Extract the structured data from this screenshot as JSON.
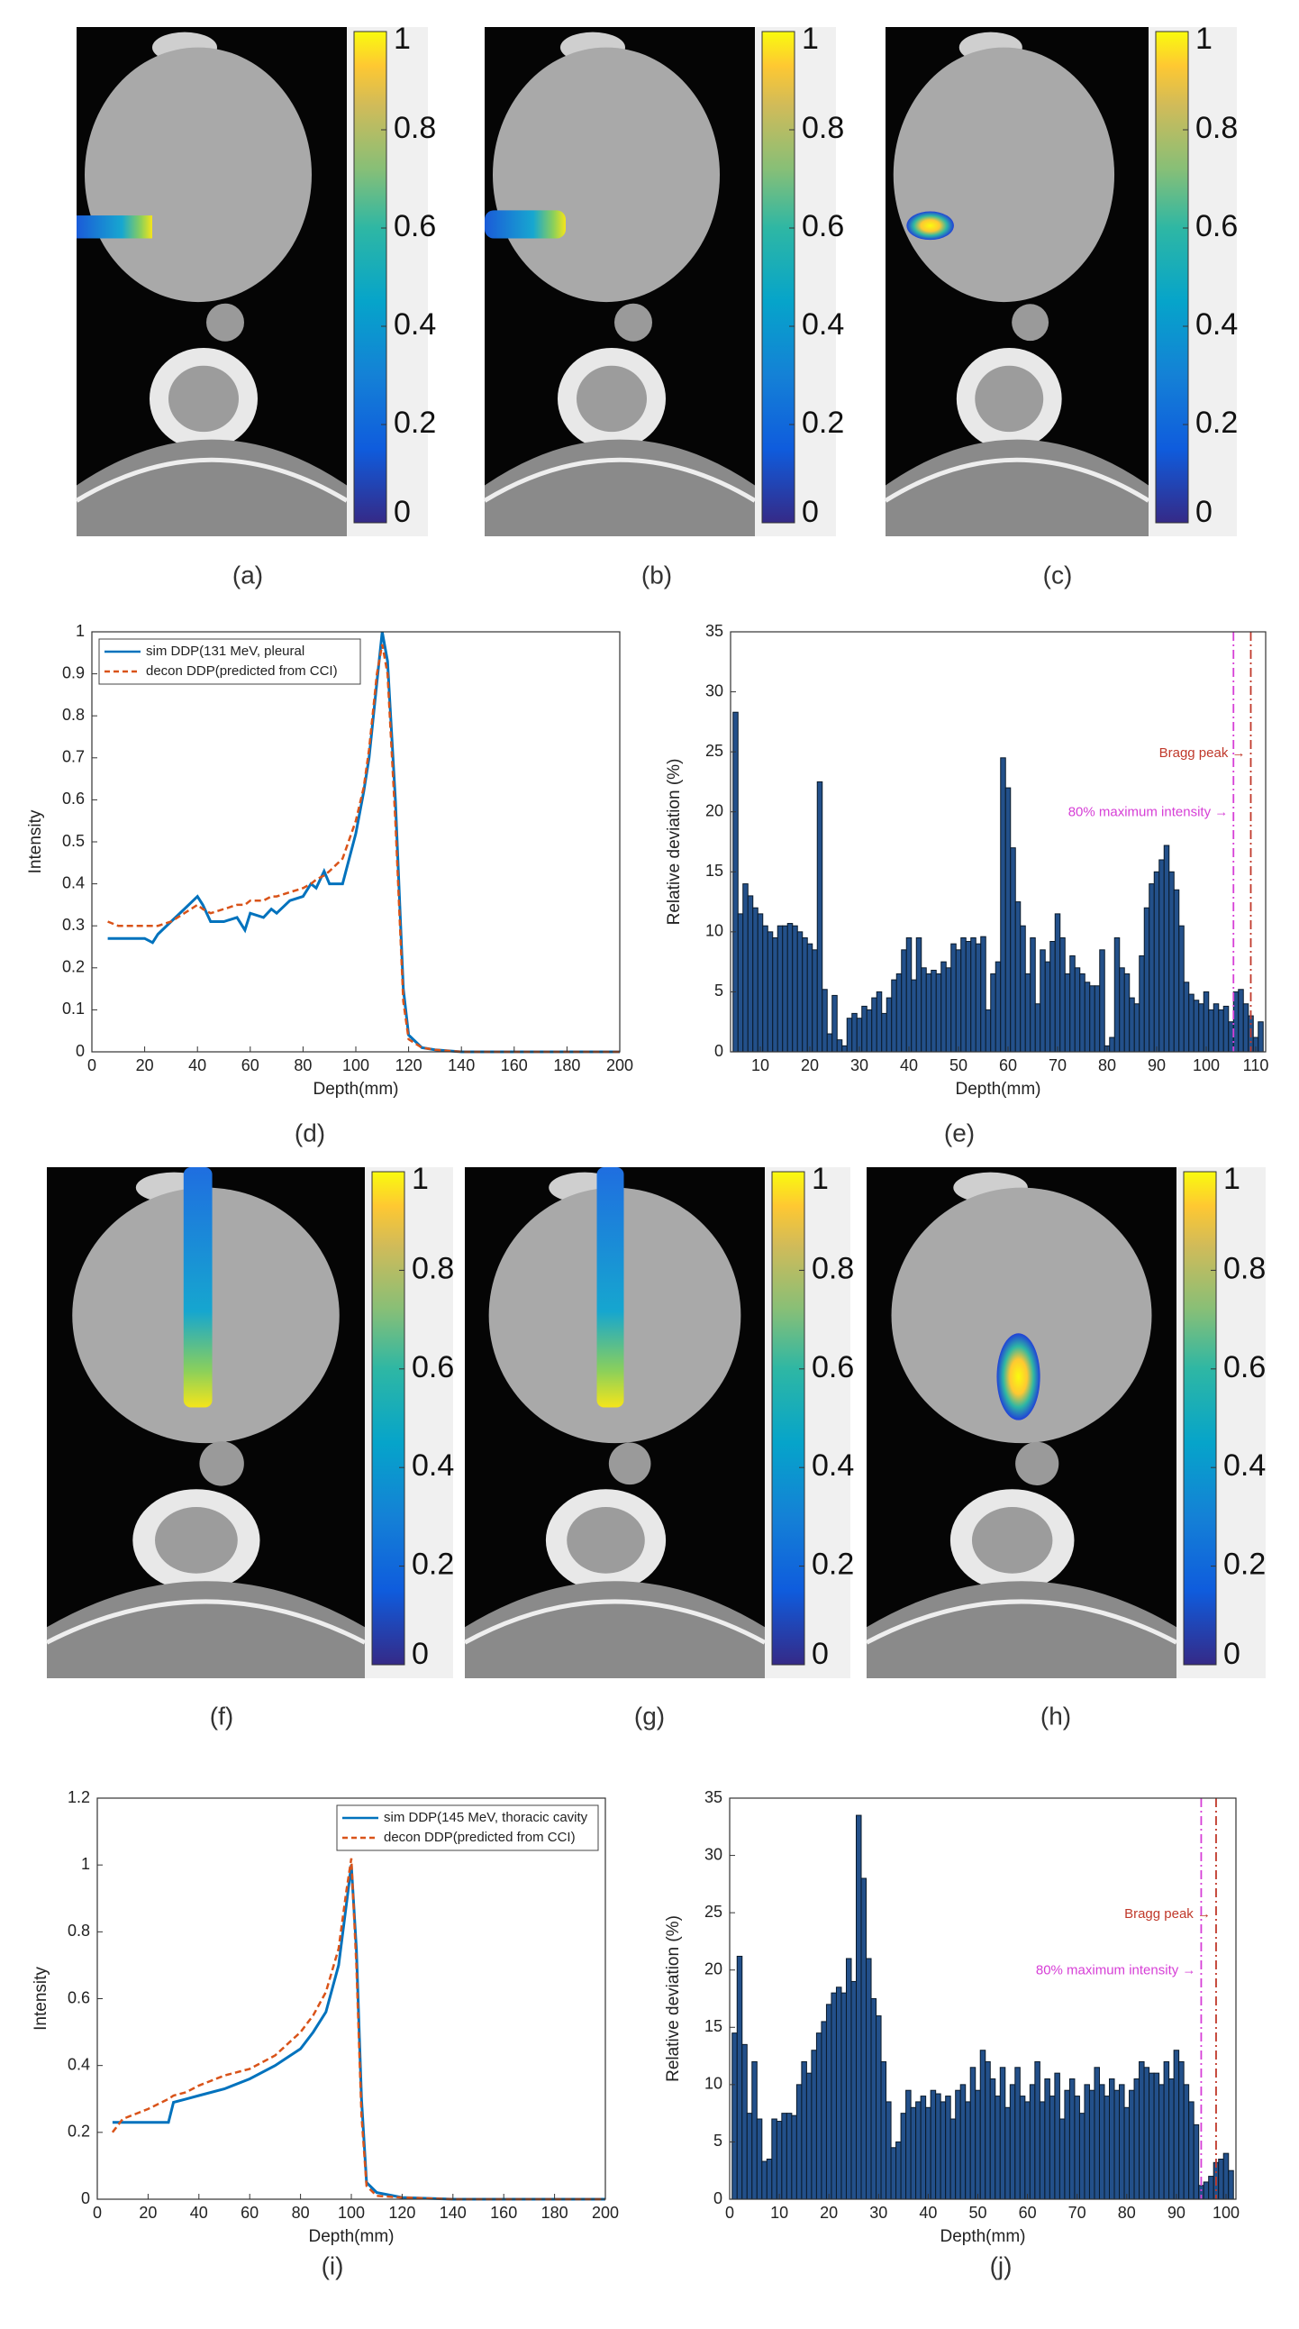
{
  "figure": {
    "image_panels": [
      {
        "label": "(a)"
      },
      {
        "label": "(b)"
      },
      {
        "label": "(c)"
      },
      {
        "label": "(f)"
      },
      {
        "label": "(g)"
      },
      {
        "label": "(h)"
      }
    ],
    "colorbar": {
      "ylim": [
        0,
        1
      ],
      "yticks": [
        0,
        0.2,
        0.4,
        0.6,
        0.8,
        1
      ]
    }
  },
  "chart_data": [
    {
      "type": "line",
      "label": "(d)",
      "xlabel": "Depth(mm)",
      "ylabel": "Intensity",
      "xlim": [
        0,
        200
      ],
      "ylim": [
        0,
        1
      ],
      "xticks": [
        0,
        20,
        40,
        60,
        80,
        100,
        120,
        140,
        160,
        180,
        200
      ],
      "yticks": [
        0,
        0.1,
        0.2,
        0.3,
        0.4,
        0.5,
        0.6,
        0.7,
        0.8,
        0.9,
        1
      ],
      "legend": "upper left",
      "series": [
        {
          "name": "sim DDP(131 MeV, pleural",
          "color": "#0072bd",
          "style": "solid",
          "x": [
            6,
            10,
            15,
            20,
            23,
            25,
            30,
            35,
            40,
            42,
            45,
            50,
            55,
            58,
            60,
            65,
            68,
            70,
            75,
            80,
            83,
            85,
            88,
            90,
            95,
            100,
            103,
            105,
            108,
            110,
            112,
            115,
            118,
            120,
            125,
            130,
            140,
            150,
            160,
            170,
            180,
            190,
            200
          ],
          "values": [
            0.27,
            0.27,
            0.27,
            0.27,
            0.26,
            0.28,
            0.31,
            0.34,
            0.37,
            0.35,
            0.31,
            0.31,
            0.32,
            0.29,
            0.33,
            0.32,
            0.34,
            0.33,
            0.36,
            0.37,
            0.4,
            0.39,
            0.43,
            0.4,
            0.4,
            0.52,
            0.62,
            0.7,
            0.88,
            1.0,
            0.93,
            0.6,
            0.15,
            0.04,
            0.01,
            0.005,
            0,
            0,
            0,
            0,
            0,
            0,
            0
          ]
        },
        {
          "name": "decon DDP(predicted from CCI)",
          "color": "#d95319",
          "style": "dashed",
          "x": [
            6,
            10,
            15,
            20,
            23,
            25,
            30,
            35,
            40,
            42,
            45,
            50,
            55,
            58,
            60,
            65,
            68,
            70,
            75,
            80,
            83,
            85,
            88,
            90,
            95,
            100,
            103,
            105,
            108,
            110,
            112,
            115,
            118,
            120,
            125,
            130,
            140,
            150,
            160,
            170,
            180,
            190,
            200
          ],
          "values": [
            0.31,
            0.3,
            0.3,
            0.3,
            0.3,
            0.3,
            0.31,
            0.33,
            0.35,
            0.34,
            0.33,
            0.34,
            0.35,
            0.35,
            0.36,
            0.36,
            0.37,
            0.37,
            0.38,
            0.39,
            0.4,
            0.41,
            0.42,
            0.43,
            0.46,
            0.55,
            0.63,
            0.72,
            0.9,
            0.97,
            0.9,
            0.55,
            0.12,
            0.03,
            0.01,
            0.005,
            0,
            0,
            0,
            0,
            0,
            0,
            0
          ]
        }
      ]
    },
    {
      "type": "bar",
      "label": "(e)",
      "xlabel": "Depth(mm)",
      "ylabel": "Relative deviation (%)",
      "xlim": [
        4,
        112
      ],
      "ylim": [
        0,
        35
      ],
      "xticks": [
        10,
        20,
        30,
        40,
        50,
        60,
        70,
        80,
        90,
        100,
        110
      ],
      "yticks": [
        0,
        5,
        10,
        15,
        20,
        25,
        30,
        35
      ],
      "color": "#23508a",
      "x": [
        5,
        6,
        7,
        8,
        9,
        10,
        11,
        12,
        13,
        14,
        15,
        16,
        17,
        18,
        19,
        20,
        21,
        22,
        23,
        24,
        25,
        26,
        27,
        28,
        29,
        30,
        31,
        32,
        33,
        34,
        35,
        36,
        37,
        38,
        39,
        40,
        41,
        42,
        43,
        44,
        45,
        46,
        47,
        48,
        49,
        50,
        51,
        52,
        53,
        54,
        55,
        56,
        57,
        58,
        59,
        60,
        61,
        62,
        63,
        64,
        65,
        66,
        67,
        68,
        69,
        70,
        71,
        72,
        73,
        74,
        75,
        76,
        77,
        78,
        79,
        80,
        81,
        82,
        83,
        84,
        85,
        86,
        87,
        88,
        89,
        90,
        91,
        92,
        93,
        94,
        95,
        96,
        97,
        98,
        99,
        100,
        101,
        102,
        103,
        104,
        105,
        106,
        107,
        108,
        109,
        110,
        111
      ],
      "values": [
        28.3,
        11.5,
        14,
        13,
        12,
        11.5,
        10.5,
        10,
        9.5,
        10.5,
        10.5,
        10.7,
        10.5,
        10,
        9.5,
        9,
        8.5,
        22.5,
        5.2,
        1.5,
        4.7,
        1,
        0.5,
        2.8,
        3.2,
        2.8,
        3.8,
        3.5,
        4.5,
        5,
        3.2,
        4.5,
        6,
        6.5,
        8.5,
        9.5,
        6,
        9.5,
        7,
        6.5,
        6.8,
        6.5,
        7.5,
        7,
        9,
        8.5,
        9.5,
        9.2,
        9.5,
        9,
        9.6,
        3.5,
        6.5,
        7.5,
        24.5,
        22,
        17,
        12.5,
        10.5,
        6.5,
        9.5,
        4,
        8.5,
        7.5,
        9.2,
        11.5,
        9.5,
        6.5,
        8,
        7,
        6.5,
        5.8,
        5.5,
        5.5,
        8.5,
        0.5,
        1.2,
        9.5,
        7,
        6.5,
        4.5,
        4,
        8,
        12,
        14,
        15,
        16,
        17.2,
        15,
        13.5,
        10.5,
        5.8,
        4.8,
        4.3,
        4,
        5,
        3.5,
        4,
        3.5,
        3.8,
        2.5,
        5,
        5.2,
        4,
        3,
        1.2,
        2.5
      ],
      "vlines": [
        {
          "x": 105.5,
          "label": "80% maximum intensity →",
          "color": "#d63fd6"
        },
        {
          "x": 109,
          "label": "Bragg peak →",
          "color": "#c0392b"
        }
      ]
    },
    {
      "type": "line",
      "label": "(i)",
      "xlabel": "Depth(mm)",
      "ylabel": "Intensity",
      "xlim": [
        0,
        200
      ],
      "ylim": [
        0,
        1.2
      ],
      "xticks": [
        0,
        20,
        40,
        60,
        80,
        100,
        120,
        140,
        160,
        180,
        200
      ],
      "yticks": [
        0,
        0.2,
        0.4,
        0.6,
        0.8,
        1,
        1.2
      ],
      "legend": "upper right",
      "series": [
        {
          "name": "sim DDP(145 MeV, thoracic cavity",
          "color": "#0072bd",
          "style": "solid",
          "x": [
            6,
            10,
            20,
            28,
            30,
            35,
            40,
            50,
            60,
            70,
            80,
            85,
            90,
            95,
            98,
            100,
            102,
            104,
            106,
            110,
            120,
            140,
            160,
            180,
            200
          ],
          "values": [
            0.23,
            0.23,
            0.23,
            0.23,
            0.29,
            0.3,
            0.31,
            0.33,
            0.36,
            0.4,
            0.45,
            0.5,
            0.56,
            0.7,
            0.88,
            1.0,
            0.75,
            0.3,
            0.05,
            0.02,
            0.005,
            0,
            0,
            0,
            0
          ]
        },
        {
          "name": "decon DDP(predicted from CCI)",
          "color": "#d95319",
          "style": "dashed",
          "x": [
            6,
            10,
            20,
            28,
            30,
            35,
            40,
            50,
            60,
            70,
            80,
            85,
            90,
            95,
            98,
            100,
            102,
            104,
            106,
            110,
            120,
            140,
            160,
            180,
            200
          ],
          "values": [
            0.2,
            0.24,
            0.27,
            0.3,
            0.31,
            0.32,
            0.34,
            0.37,
            0.39,
            0.43,
            0.5,
            0.55,
            0.62,
            0.75,
            0.92,
            1.02,
            0.7,
            0.25,
            0.04,
            0.01,
            0.005,
            0,
            0,
            0,
            0
          ]
        }
      ]
    },
    {
      "type": "bar",
      "label": "(j)",
      "xlabel": "Depth(mm)",
      "ylabel": "Relative deviation (%)",
      "xlim": [
        0,
        102
      ],
      "ylim": [
        0,
        35
      ],
      "xticks": [
        0,
        10,
        20,
        30,
        40,
        50,
        60,
        70,
        80,
        90,
        100
      ],
      "yticks": [
        0,
        5,
        10,
        15,
        20,
        25,
        30,
        35
      ],
      "color": "#23508a",
      "x": [
        1,
        2,
        3,
        4,
        5,
        6,
        7,
        8,
        9,
        10,
        11,
        12,
        13,
        14,
        15,
        16,
        17,
        18,
        19,
        20,
        21,
        22,
        23,
        24,
        25,
        26,
        27,
        28,
        29,
        30,
        31,
        32,
        33,
        34,
        35,
        36,
        37,
        38,
        39,
        40,
        41,
        42,
        43,
        44,
        45,
        46,
        47,
        48,
        49,
        50,
        51,
        52,
        53,
        54,
        55,
        56,
        57,
        58,
        59,
        60,
        61,
        62,
        63,
        64,
        65,
        66,
        67,
        68,
        69,
        70,
        71,
        72,
        73,
        74,
        75,
        76,
        77,
        78,
        79,
        80,
        81,
        82,
        83,
        84,
        85,
        86,
        87,
        88,
        89,
        90,
        91,
        92,
        93,
        94,
        95,
        96,
        97,
        98,
        99,
        100,
        101
      ],
      "values": [
        14.5,
        21.2,
        13.5,
        7.5,
        12,
        7,
        3.3,
        3.5,
        7,
        6.8,
        7.5,
        7.5,
        7.3,
        10,
        12,
        11,
        13,
        14.5,
        15.5,
        17,
        18,
        18.5,
        18,
        21,
        19,
        33.5,
        28,
        21,
        17.5,
        16,
        12,
        8.5,
        4.5,
        5,
        7.5,
        9.5,
        8,
        8.5,
        9,
        8,
        9.5,
        9.2,
        8.5,
        9,
        7,
        9.5,
        10,
        8.5,
        11.5,
        9.5,
        13,
        12,
        10.5,
        9,
        11.5,
        8,
        10,
        11.5,
        9,
        8.5,
        10,
        12,
        8.5,
        10.5,
        9,
        11,
        7,
        9.5,
        10.5,
        9,
        7.5,
        10,
        9.5,
        11.5,
        10,
        9,
        10.5,
        9.5,
        10,
        8,
        9.5,
        10.5,
        12,
        11.5,
        11,
        11,
        10,
        12,
        10.5,
        13,
        12,
        10,
        8.5,
        6.5,
        1.2,
        1.5,
        2,
        3.2,
        3.5,
        4,
        2.5
      ],
      "vlines": [
        {
          "x": 95,
          "label": "80% maximum intensity →",
          "color": "#d63fd6"
        },
        {
          "x": 98,
          "label": "Bragg peak →",
          "color": "#c0392b"
        }
      ]
    }
  ]
}
